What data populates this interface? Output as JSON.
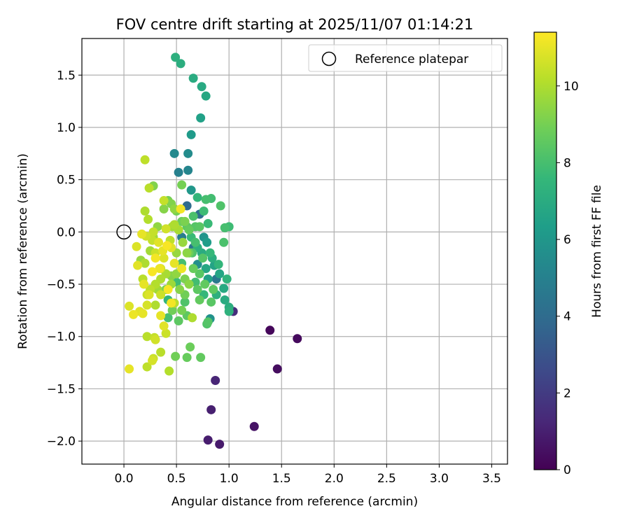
{
  "chart_data": {
    "type": "scatter",
    "title": "FOV centre drift starting at 2025/11/07 01:14:21",
    "xlabel": "Angular distance from reference (arcmin)",
    "ylabel": "Rotation from reference (arcmin)",
    "xlim": [
      -0.4,
      3.65
    ],
    "ylim": [
      -2.22,
      1.85
    ],
    "xticks": [
      0.0,
      0.5,
      1.0,
      1.5,
      2.0,
      2.5,
      3.0,
      3.5
    ],
    "xtick_labels": [
      "0.0",
      "0.5",
      "1.0",
      "1.5",
      "2.0",
      "2.5",
      "3.0",
      "3.5"
    ],
    "yticks": [
      1.5,
      1.0,
      0.5,
      0.0,
      -0.5,
      -1.0,
      -1.5,
      -2.0
    ],
    "ytick_labels": [
      "1.5",
      "1.0",
      "0.5",
      "0.0",
      "−0.5",
      "−1.0",
      "−1.5",
      "−2.0"
    ],
    "grid": true,
    "legend": {
      "position": "top-right",
      "label": "Reference platepar",
      "marker": "open-circle"
    },
    "reference_point": {
      "x": 0.0,
      "y": 0.0
    },
    "colorbar": {
      "label": "Hours from first FF file",
      "range": [
        0,
        11.4
      ],
      "ticks": [
        0,
        2,
        4,
        6,
        8,
        10
      ],
      "tick_labels": [
        "0",
        "2",
        "4",
        "6",
        "8",
        "10"
      ],
      "colormap": [
        "#440154",
        "#482878",
        "#3e4989",
        "#31688e",
        "#26828e",
        "#1f9e89",
        "#35b779",
        "#6ece58",
        "#b5de2b",
        "#fde725"
      ]
    },
    "points": [
      {
        "x": 1.39,
        "y": -0.94,
        "c": 0.2
      },
      {
        "x": 1.65,
        "y": -1.02,
        "c": 0.3
      },
      {
        "x": 1.46,
        "y": -1.31,
        "c": 0.4
      },
      {
        "x": 1.24,
        "y": -1.86,
        "c": 0.6
      },
      {
        "x": 0.91,
        "y": -2.03,
        "c": 0.8
      },
      {
        "x": 0.8,
        "y": -1.99,
        "c": 0.9
      },
      {
        "x": 0.83,
        "y": -1.7,
        "c": 1.0
      },
      {
        "x": 0.87,
        "y": -1.42,
        "c": 1.2
      },
      {
        "x": 1.04,
        "y": -0.76,
        "c": 1.5
      },
      {
        "x": 0.6,
        "y": 0.25,
        "c": 4.0
      },
      {
        "x": 0.72,
        "y": 0.17,
        "c": 4.2
      },
      {
        "x": 0.66,
        "y": -0.15,
        "c": 4.4
      },
      {
        "x": 0.88,
        "y": -0.45,
        "c": 4.6
      },
      {
        "x": 0.55,
        "y": -0.05,
        "c": 4.8
      },
      {
        "x": 0.52,
        "y": 0.57,
        "c": 5.0
      },
      {
        "x": 0.61,
        "y": 0.59,
        "c": 5.2
      },
      {
        "x": 0.48,
        "y": 0.75,
        "c": 5.4
      },
      {
        "x": 0.61,
        "y": 0.75,
        "c": 5.5
      },
      {
        "x": 0.7,
        "y": -0.31,
        "c": 5.6
      },
      {
        "x": 0.82,
        "y": -0.83,
        "c": 5.8
      },
      {
        "x": 0.76,
        "y": -0.05,
        "c": 5.9
      },
      {
        "x": 0.64,
        "y": 0.4,
        "c": 6.0
      },
      {
        "x": 0.64,
        "y": 0.93,
        "c": 6.2
      },
      {
        "x": 0.73,
        "y": 1.09,
        "c": 6.5
      },
      {
        "x": 0.78,
        "y": 1.3,
        "c": 6.8
      },
      {
        "x": 0.74,
        "y": 1.39,
        "c": 6.9
      },
      {
        "x": 0.66,
        "y": 1.47,
        "c": 7.0
      },
      {
        "x": 0.54,
        "y": 1.61,
        "c": 7.1
      },
      {
        "x": 0.49,
        "y": 1.67,
        "c": 7.2
      },
      {
        "x": 0.79,
        "y": -0.1,
        "c": 6.3
      },
      {
        "x": 0.86,
        "y": -0.32,
        "c": 6.6
      },
      {
        "x": 0.91,
        "y": -0.4,
        "c": 6.7
      },
      {
        "x": 0.95,
        "y": -0.54,
        "c": 6.9
      },
      {
        "x": 0.96,
        "y": -0.65,
        "c": 7.0
      },
      {
        "x": 1.0,
        "y": -0.72,
        "c": 7.1
      },
      {
        "x": 1.0,
        "y": -0.76,
        "c": 7.3
      },
      {
        "x": 0.98,
        "y": -0.45,
        "c": 7.4
      },
      {
        "x": 0.9,
        "y": -0.31,
        "c": 7.5
      },
      {
        "x": 0.82,
        "y": -0.2,
        "c": 7.6
      },
      {
        "x": 0.8,
        "y": 0.08,
        "c": 7.7
      },
      {
        "x": 0.76,
        "y": 0.2,
        "c": 7.8
      },
      {
        "x": 0.83,
        "y": 0.32,
        "c": 7.9
      },
      {
        "x": 0.7,
        "y": 0.33,
        "c": 7.5
      },
      {
        "x": 0.78,
        "y": 0.31,
        "c": 8.0
      },
      {
        "x": 0.96,
        "y": 0.04,
        "c": 8.0
      },
      {
        "x": 1.0,
        "y": 0.05,
        "c": 7.8
      },
      {
        "x": 0.95,
        "y": -0.1,
        "c": 8.1
      },
      {
        "x": 0.92,
        "y": 0.25,
        "c": 8.2
      },
      {
        "x": 0.75,
        "y": -0.25,
        "c": 8.3
      },
      {
        "x": 0.72,
        "y": -0.4,
        "c": 8.4
      },
      {
        "x": 0.7,
        "y": -0.55,
        "c": 8.5
      },
      {
        "x": 0.72,
        "y": -0.65,
        "c": 8.6
      },
      {
        "x": 0.79,
        "y": -0.88,
        "c": 8.2
      },
      {
        "x": 0.8,
        "y": -0.86,
        "c": 8.3
      },
      {
        "x": 0.83,
        "y": -0.67,
        "c": 8.4
      },
      {
        "x": 0.85,
        "y": -0.55,
        "c": 8.5
      },
      {
        "x": 0.77,
        "y": -0.5,
        "c": 8.6
      },
      {
        "x": 0.66,
        "y": -0.35,
        "c": 8.7
      },
      {
        "x": 0.62,
        "y": -0.2,
        "c": 8.8
      },
      {
        "x": 0.58,
        "y": -0.6,
        "c": 8.9
      },
      {
        "x": 0.6,
        "y": -1.2,
        "c": 8.7
      },
      {
        "x": 0.73,
        "y": -1.2,
        "c": 8.6
      },
      {
        "x": 0.63,
        "y": -1.1,
        "c": 8.8
      },
      {
        "x": 0.49,
        "y": -1.19,
        "c": 8.9
      },
      {
        "x": 0.55,
        "y": -0.75,
        "c": 9.0
      },
      {
        "x": 0.6,
        "y": -0.8,
        "c": 8.5
      },
      {
        "x": 0.42,
        "y": -0.82,
        "c": 8.0
      },
      {
        "x": 0.42,
        "y": -0.65,
        "c": 7.5
      },
      {
        "x": 0.5,
        "y": -0.48,
        "c": 7.8
      },
      {
        "x": 0.55,
        "y": -0.3,
        "c": 8.0
      },
      {
        "x": 0.6,
        "y": 0.05,
        "c": 8.5
      },
      {
        "x": 0.55,
        "y": 0.1,
        "c": 8.8
      },
      {
        "x": 0.5,
        "y": 0.2,
        "c": 9.0
      },
      {
        "x": 0.45,
        "y": 0.27,
        "c": 9.2
      },
      {
        "x": 0.38,
        "y": 0.22,
        "c": 9.3
      },
      {
        "x": 0.42,
        "y": 0.3,
        "c": 9.0
      },
      {
        "x": 0.32,
        "y": 0.05,
        "c": 9.5
      },
      {
        "x": 0.28,
        "y": -0.05,
        "c": 9.7
      },
      {
        "x": 0.25,
        "y": -0.18,
        "c": 9.8
      },
      {
        "x": 0.2,
        "y": -0.3,
        "c": 10.0
      },
      {
        "x": 0.18,
        "y": -0.45,
        "c": 10.2
      },
      {
        "x": 0.16,
        "y": -0.27,
        "c": 9.6
      },
      {
        "x": 0.2,
        "y": 0.2,
        "c": 10.0
      },
      {
        "x": 0.24,
        "y": 0.42,
        "c": 10.2
      },
      {
        "x": 0.2,
        "y": 0.69,
        "c": 10.3
      },
      {
        "x": 0.23,
        "y": 0.12,
        "c": 10.1
      },
      {
        "x": 0.27,
        "y": -0.08,
        "c": 10.4
      },
      {
        "x": 0.3,
        "y": -0.2,
        "c": 10.5
      },
      {
        "x": 0.35,
        "y": -0.35,
        "c": 10.6
      },
      {
        "x": 0.38,
        "y": -0.25,
        "c": 10.8
      },
      {
        "x": 0.45,
        "y": -0.15,
        "c": 10.9
      },
      {
        "x": 0.48,
        "y": -0.3,
        "c": 11.0
      },
      {
        "x": 0.55,
        "y": -0.35,
        "c": 11.1
      },
      {
        "x": 0.45,
        "y": -0.68,
        "c": 11.2
      },
      {
        "x": 0.42,
        "y": -0.55,
        "c": 11.3
      },
      {
        "x": 0.35,
        "y": -0.8,
        "c": 11.0
      },
      {
        "x": 0.38,
        "y": -0.9,
        "c": 10.9
      },
      {
        "x": 0.4,
        "y": -0.97,
        "c": 10.5
      },
      {
        "x": 0.29,
        "y": -1.01,
        "c": 10.4
      },
      {
        "x": 0.3,
        "y": -1.03,
        "c": 10.6
      },
      {
        "x": 0.22,
        "y": -1.0,
        "c": 10.2
      },
      {
        "x": 0.28,
        "y": -1.21,
        "c": 10.5
      },
      {
        "x": 0.27,
        "y": -1.23,
        "c": 10.7
      },
      {
        "x": 0.22,
        "y": -1.29,
        "c": 10.3
      },
      {
        "x": 0.43,
        "y": -1.33,
        "c": 10.1
      },
      {
        "x": 0.35,
        "y": -1.15,
        "c": 10.2
      },
      {
        "x": 0.05,
        "y": -1.31,
        "c": 11.0
      },
      {
        "x": 0.05,
        "y": -0.71,
        "c": 10.8
      },
      {
        "x": 0.09,
        "y": -0.79,
        "c": 11.1
      },
      {
        "x": 0.15,
        "y": -0.76,
        "c": 10.9
      },
      {
        "x": 0.18,
        "y": -0.78,
        "c": 11.0
      },
      {
        "x": 0.22,
        "y": -0.7,
        "c": 10.7
      },
      {
        "x": 0.22,
        "y": -0.6,
        "c": 10.5
      },
      {
        "x": 0.25,
        "y": -0.55,
        "c": 10.3
      },
      {
        "x": 0.3,
        "y": -0.5,
        "c": 10.1
      },
      {
        "x": 0.35,
        "y": -0.45,
        "c": 10.0
      },
      {
        "x": 0.4,
        "y": -0.4,
        "c": 9.9
      },
      {
        "x": 0.45,
        "y": -0.5,
        "c": 9.7
      },
      {
        "x": 0.5,
        "y": -0.4,
        "c": 9.5
      },
      {
        "x": 0.53,
        "y": -0.55,
        "c": 9.3
      },
      {
        "x": 0.58,
        "y": -0.45,
        "c": 9.1
      },
      {
        "x": 0.62,
        "y": -0.5,
        "c": 9.4
      },
      {
        "x": 0.65,
        "y": -0.82,
        "c": 10.0
      },
      {
        "x": 0.48,
        "y": -0.68,
        "c": 10.2
      },
      {
        "x": 0.3,
        "y": -0.7,
        "c": 10.0
      },
      {
        "x": 0.32,
        "y": -0.55,
        "c": 9.8
      },
      {
        "x": 0.12,
        "y": -0.14,
        "c": 10.8
      },
      {
        "x": 0.17,
        "y": -0.02,
        "c": 11.0
      },
      {
        "x": 0.21,
        "y": -0.04,
        "c": 10.6
      },
      {
        "x": 0.28,
        "y": 0.0,
        "c": 10.4
      },
      {
        "x": 0.33,
        "y": -0.1,
        "c": 10.9
      },
      {
        "x": 0.4,
        "y": 0.03,
        "c": 10.6
      },
      {
        "x": 0.44,
        "y": -0.08,
        "c": 10.3
      },
      {
        "x": 0.48,
        "y": 0.07,
        "c": 10.0
      },
      {
        "x": 0.52,
        "y": 0.02,
        "c": 9.9
      },
      {
        "x": 0.56,
        "y": -0.1,
        "c": 9.6
      },
      {
        "x": 0.6,
        "y": -0.2,
        "c": 9.4
      },
      {
        "x": 0.38,
        "y": 0.3,
        "c": 10.4
      },
      {
        "x": 0.54,
        "y": 0.22,
        "c": 11.2
      },
      {
        "x": 0.55,
        "y": 0.45,
        "c": 9.0
      },
      {
        "x": 0.48,
        "y": 0.22,
        "c": 9.5
      },
      {
        "x": 0.28,
        "y": 0.44,
        "c": 9.2
      },
      {
        "x": 0.3,
        "y": -0.25,
        "c": 11.2
      },
      {
        "x": 0.37,
        "y": -0.18,
        "c": 11.0
      },
      {
        "x": 0.41,
        "y": -0.13,
        "c": 11.3
      },
      {
        "x": 0.34,
        "y": -0.35,
        "c": 11.1
      },
      {
        "x": 0.13,
        "y": -0.32,
        "c": 10.9
      },
      {
        "x": 0.19,
        "y": -0.5,
        "c": 11.0
      },
      {
        "x": 0.27,
        "y": -0.38,
        "c": 11.3
      },
      {
        "x": 0.24,
        "y": -0.6,
        "c": 10.8
      },
      {
        "x": 0.35,
        "y": -0.6,
        "c": 10.5
      },
      {
        "x": 0.65,
        "y": -0.2,
        "c": 8.2
      },
      {
        "x": 0.68,
        "y": -0.1,
        "c": 8.0
      },
      {
        "x": 0.72,
        "y": 0.05,
        "c": 8.4
      },
      {
        "x": 0.68,
        "y": 0.05,
        "c": 8.3
      },
      {
        "x": 0.66,
        "y": 0.15,
        "c": 8.1
      },
      {
        "x": 0.62,
        "y": 0.02,
        "c": 8.7
      },
      {
        "x": 0.58,
        "y": 0.1,
        "c": 9.1
      },
      {
        "x": 0.64,
        "y": -0.05,
        "c": 7.7
      },
      {
        "x": 0.7,
        "y": -0.15,
        "c": 7.2
      },
      {
        "x": 0.74,
        "y": -0.2,
        "c": 7.0
      },
      {
        "x": 0.78,
        "y": -0.35,
        "c": 6.8
      },
      {
        "x": 0.8,
        "y": -0.45,
        "c": 6.5
      },
      {
        "x": 0.84,
        "y": -0.25,
        "c": 7.1
      },
      {
        "x": 0.88,
        "y": -0.6,
        "c": 7.2
      },
      {
        "x": 0.76,
        "y": -0.6,
        "c": 7.6
      },
      {
        "x": 0.68,
        "y": -0.48,
        "c": 7.9
      },
      {
        "x": 0.58,
        "y": -0.67,
        "c": 8.2
      },
      {
        "x": 0.52,
        "y": -0.85,
        "c": 8.5
      },
      {
        "x": 0.46,
        "y": -0.75,
        "c": 8.9
      },
      {
        "x": 0.4,
        "y": -0.55,
        "c": 9.0
      },
      {
        "x": 0.45,
        "y": -0.42,
        "c": 9.3
      },
      {
        "x": 0.5,
        "y": -0.2,
        "c": 9.6
      },
      {
        "x": 0.46,
        "y": 0.05,
        "c": 9.8
      }
    ]
  }
}
